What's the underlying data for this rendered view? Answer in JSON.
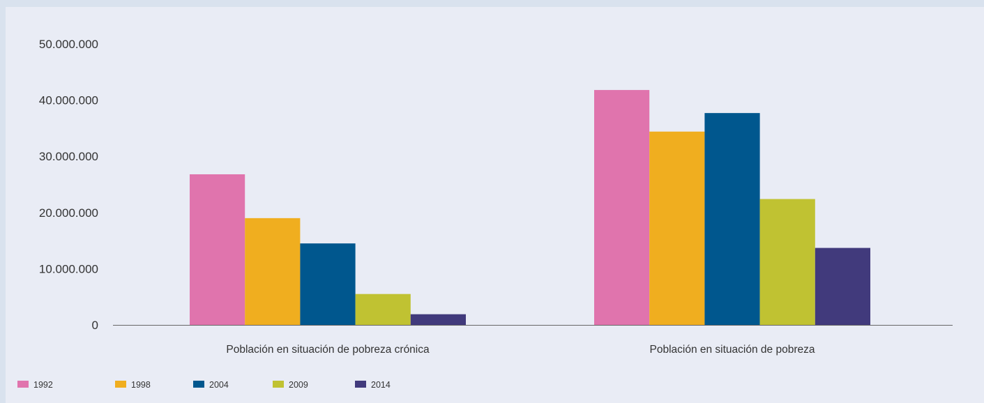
{
  "chart_data": {
    "type": "bar",
    "categories": [
      "Población en situación de pobreza crónica",
      "Población en situación de pobreza"
    ],
    "series": [
      {
        "name": "1992",
        "color": "#e074ad",
        "values": [
          26800000,
          41800000
        ]
      },
      {
        "name": "1998",
        "color": "#f0ae1f",
        "values": [
          19000000,
          34400000
        ]
      },
      {
        "name": "2004",
        "color": "#00578e",
        "values": [
          14500000,
          37700000
        ]
      },
      {
        "name": "2009",
        "color": "#c0c232",
        "values": [
          5500000,
          22400000
        ]
      },
      {
        "name": "2014",
        "color": "#413a7c",
        "values": [
          1900000,
          13700000
        ]
      }
    ],
    "ylim": [
      0,
      50000000
    ],
    "yticks": [
      "0",
      "10.000.000",
      "20.000.000",
      "30.000.000",
      "40.000.000",
      "50.000.000"
    ],
    "ytick_values": [
      0,
      10000000,
      20000000,
      30000000,
      40000000,
      50000000
    ],
    "grid": false,
    "legend_position": "bottom-left"
  }
}
